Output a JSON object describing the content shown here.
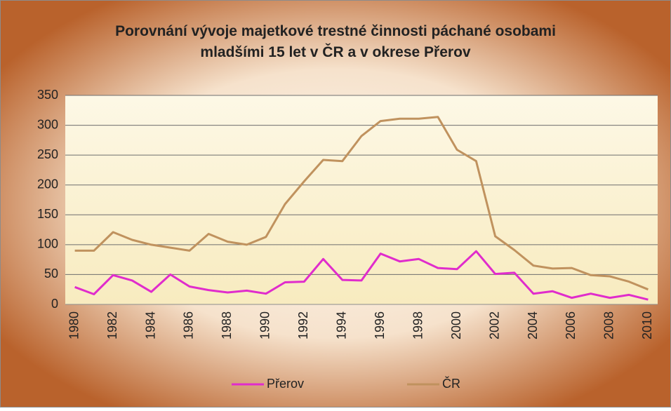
{
  "chart_data": {
    "type": "line",
    "title": "Porovnání vývoje majetkové trestné činnosti páchané osobami mladšími 15 let v ČR a v okrese Přerov",
    "categories": [
      "1980",
      null,
      "1982",
      null,
      "1984",
      null,
      "1986",
      null,
      "1988",
      null,
      "1990",
      null,
      "1992",
      null,
      "1994",
      null,
      "1996",
      null,
      "1998",
      null,
      "2000",
      null,
      "2002",
      null,
      "2004",
      null,
      "2006",
      null,
      "2008",
      null,
      "2010"
    ],
    "series": [
      {
        "name": "Přerov",
        "color": "#e02ccc",
        "values": [
          29,
          17,
          49,
          40,
          21,
          50,
          30,
          24,
          20,
          23,
          18,
          37,
          38,
          76,
          41,
          40,
          85,
          72,
          76,
          61,
          59,
          89,
          51,
          53,
          18,
          22,
          11,
          18,
          11,
          16,
          8
        ]
      },
      {
        "name": "ČR",
        "color": "#c0925e",
        "values": [
          90,
          90,
          121,
          108,
          100,
          95,
          90,
          118,
          105,
          100,
          113,
          168,
          206,
          242,
          240,
          282,
          307,
          311,
          311,
          314,
          259,
          240,
          114,
          91,
          65,
          60,
          61,
          49,
          47,
          38,
          25
        ]
      }
    ],
    "ylim": [
      0,
      350
    ],
    "yticks": [
      0,
      50,
      100,
      150,
      200,
      250,
      300,
      350
    ],
    "grid": true,
    "legend": "bottom"
  }
}
